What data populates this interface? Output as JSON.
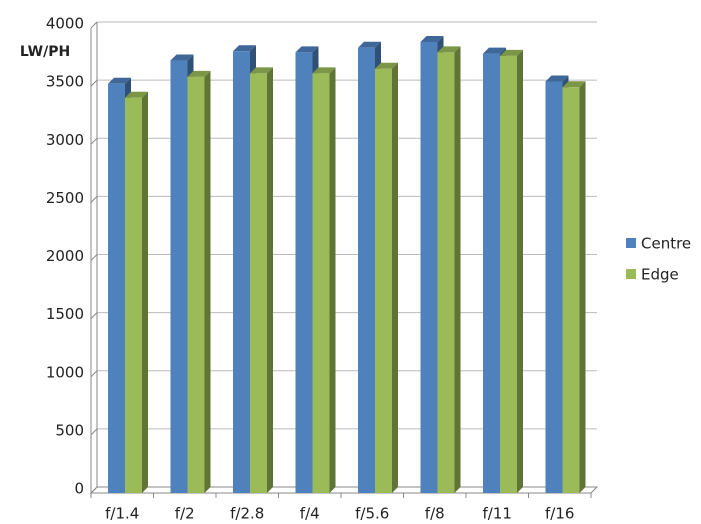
{
  "chart_data": {
    "type": "bar",
    "y_label": "LW/PH",
    "categories": [
      "f/1.4",
      "f/2",
      "f/2.8",
      "f/4",
      "f/5.6",
      "f/8",
      "f/11",
      "f/16"
    ],
    "series": [
      {
        "name": "Centre",
        "color": "#4f81bd",
        "values": [
          3520,
          3720,
          3800,
          3790,
          3830,
          3880,
          3780,
          3540
        ]
      },
      {
        "name": "Edge",
        "color": "#9bbb59",
        "values": [
          3400,
          3580,
          3610,
          3610,
          3650,
          3790,
          3760,
          3490
        ]
      }
    ],
    "ylim": [
      0,
      4000
    ],
    "yticks": [
      0,
      500,
      1000,
      1500,
      2000,
      2500,
      3000,
      3500,
      4000
    ],
    "grid": true,
    "legend": "right"
  }
}
